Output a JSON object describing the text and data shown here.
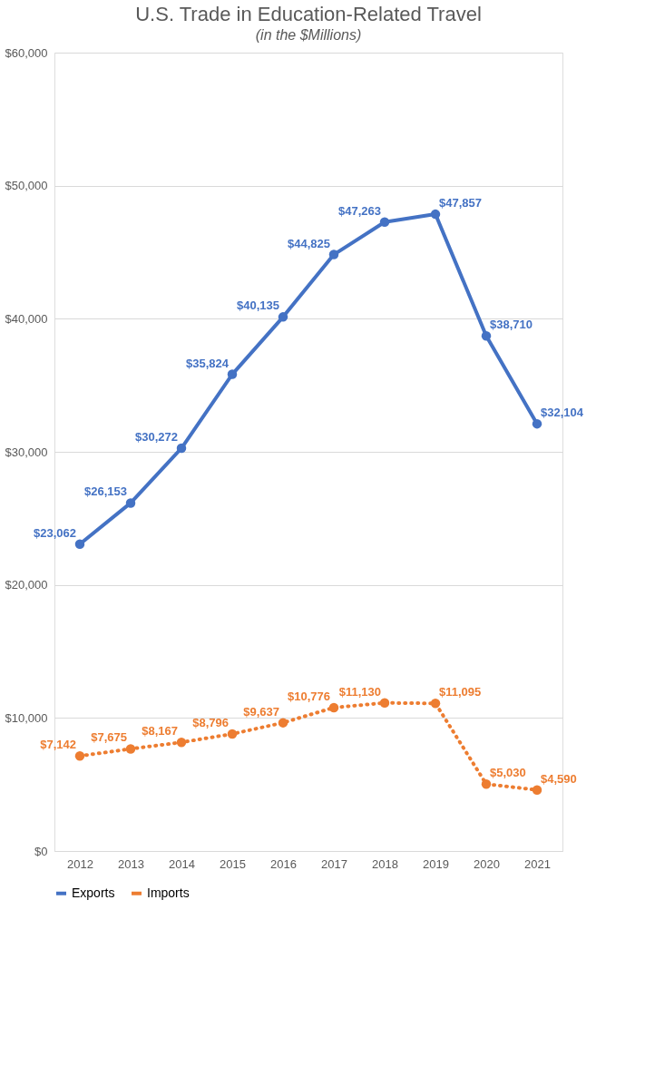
{
  "chart_data": {
    "type": "line",
    "title": "U.S. Trade in Education-Related Travel",
    "subtitle": "(in the $Millions)",
    "categories": [
      "2012",
      "2013",
      "2014",
      "2015",
      "2016",
      "2017",
      "2018",
      "2019",
      "2020",
      "2021"
    ],
    "series": [
      {
        "name": "Exports",
        "color": "#4472c4",
        "line_style": "solid",
        "values": [
          23062,
          26153,
          30272,
          35824,
          40135,
          44825,
          47263,
          47857,
          38710,
          32104
        ],
        "value_labels": [
          "$23,062",
          "$26,153",
          "$30,272",
          "$35,824",
          "$40,135",
          "$44,825",
          "$47,263",
          "$47,857",
          "$38,710",
          "$32,104"
        ]
      },
      {
        "name": "Imports",
        "color": "#ed7d31",
        "line_style": "dotted",
        "values": [
          7142,
          7675,
          8167,
          8796,
          9637,
          10776,
          11130,
          11095,
          5030,
          4590
        ],
        "value_labels": [
          "$7,142",
          "$7,675",
          "$8,167",
          "$8,796",
          "$9,637",
          "$10,776",
          "$11,130",
          "$11,095",
          "$5,030",
          "$4,590"
        ]
      }
    ],
    "ylim": [
      0,
      60000
    ],
    "yticks": [
      {
        "value": 0,
        "label": "$0"
      },
      {
        "value": 10000,
        "label": "$10,000"
      },
      {
        "value": 20000,
        "label": "$20,000"
      },
      {
        "value": 30000,
        "label": "$30,000"
      },
      {
        "value": 40000,
        "label": "$40,000"
      },
      {
        "value": 50000,
        "label": "$50,000"
      },
      {
        "value": 60000,
        "label": "$60,000"
      }
    ],
    "grid": "y",
    "legend": "bottom",
    "marker": "circle"
  }
}
